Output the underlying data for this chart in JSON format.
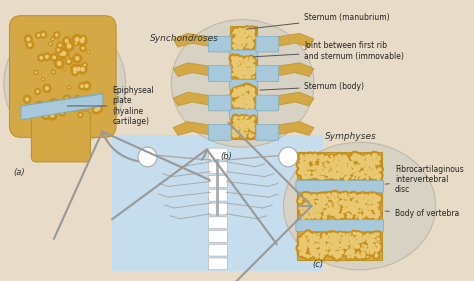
{
  "bg_color": "#e8dcc8",
  "center_bg": "#c5dded",
  "oval_bg": "#d8d2c4",
  "bone_color": "#d4a844",
  "bone_light": "#e8c870",
  "cartilage_color": "#a8c8dc",
  "cartilage_dark": "#7aaabb",
  "outline_color": "#b8952a",
  "label_a": "(a)",
  "label_b": "(b)",
  "label_c": "(c)",
  "synchondroses_label": "Synchondroses",
  "symphyses_label": "Symphyses",
  "ann_manubrium": "Sternum (manubrium)",
  "ann_joint": "Joint between first rib\nand sternum (immovable)",
  "ann_sternum_body": "Sternum (body)",
  "ann_epiphyseal": "Epiphyseal\nplate\n(hyaline\ncartilage)",
  "ann_disc": "Fibrocartilaginous\nintervertebral\ndisc",
  "ann_vertebra": "Body of vertebra"
}
